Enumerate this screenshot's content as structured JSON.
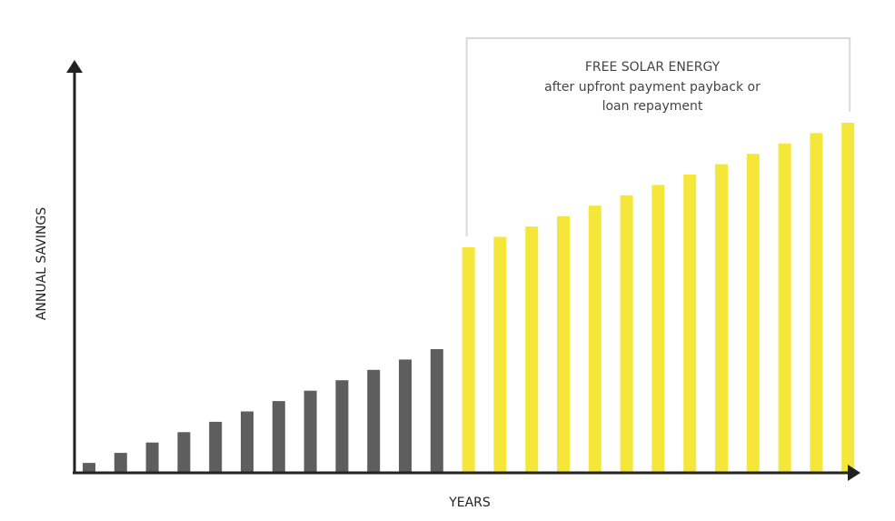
{
  "chart_data": {
    "type": "bar",
    "xlabel": "YEARS",
    "ylabel": "ANNUAL SAVINGS",
    "ylim": [
      0,
      100
    ],
    "grid": false,
    "legend": "none",
    "series": [
      {
        "color": "#5e5e5e",
        "values": [
          2.6,
          5.5,
          8.5,
          11.5,
          14.5,
          17.5,
          20.5,
          23.5,
          26.5,
          29.5,
          32.5,
          35.5
        ]
      },
      {
        "color": "#f5e73a",
        "values": [
          65,
          68,
          71,
          74,
          77,
          80,
          83,
          86,
          89,
          92,
          95,
          98,
          101
        ]
      }
    ],
    "annotation": {
      "lines": [
        "FREE SOLAR ENERGY",
        "after upfront payment payback or",
        "loan repayment"
      ],
      "bracket_color": "#d9d9d9"
    }
  }
}
